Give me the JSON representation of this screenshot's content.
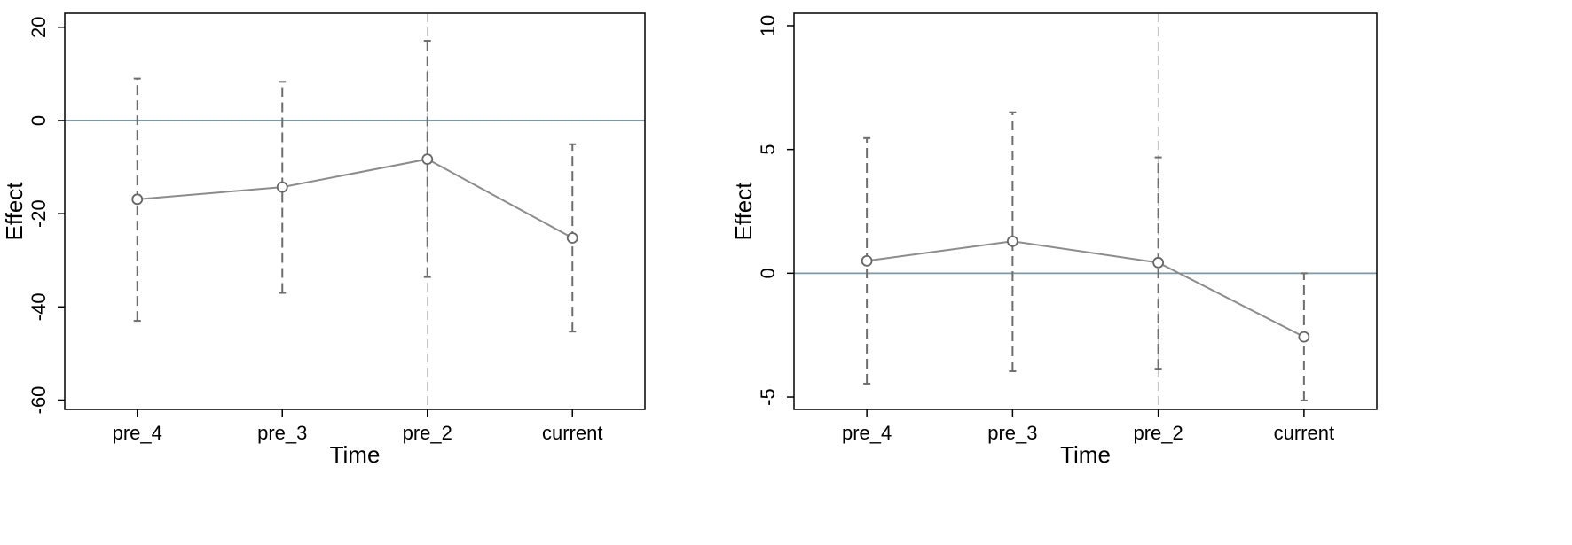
{
  "chart_data": [
    {
      "type": "line",
      "x_label": "Time",
      "y_label": "Effect",
      "categories": [
        "pre_4",
        "pre_3",
        "pre_2",
        "current"
      ],
      "series": [
        {
          "color": "#8c8c8c",
          "values": [
            -16.9,
            -14.3,
            -8.3,
            -25.2
          ],
          "lower": [
            -43,
            -37,
            -33.6,
            -45.3
          ],
          "upper": [
            9,
            8.3,
            17.1,
            -5.1
          ]
        }
      ],
      "ylim": [
        -62,
        23
      ],
      "yticks": [
        -60,
        -40,
        -20,
        0,
        20
      ],
      "hline": 0,
      "vline": "pre_2",
      "hline_color": "#7f97a8",
      "vline_color": "#c8c8c8",
      "errorbar_color": "#6e6e6e"
    },
    {
      "type": "line",
      "x_label": "Time",
      "y_label": "Effect",
      "categories": [
        "pre_4",
        "pre_3",
        "pre_2",
        "current"
      ],
      "series": [
        {
          "color": "#8c8c8c",
          "values": [
            0.5,
            1.29,
            0.43,
            -2.57
          ],
          "lower": [
            -4.46,
            -3.96,
            -3.86,
            -5.14
          ],
          "upper": [
            5.46,
            6.5,
            4.68,
            0
          ]
        }
      ],
      "ylim": [
        -5.5,
        10.5
      ],
      "yticks": [
        -5,
        0,
        5,
        10
      ],
      "hline": 0,
      "vline": "pre_2",
      "hline_color": "#7f97a8",
      "vline_color": "#c8c8c8",
      "errorbar_color": "#6e6e6e"
    }
  ]
}
